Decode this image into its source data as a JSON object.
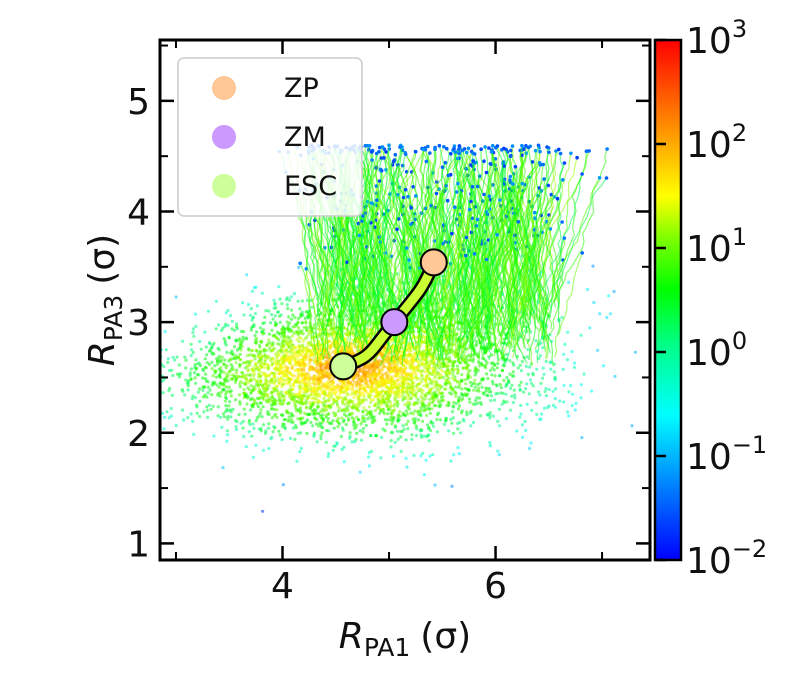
{
  "chart_data": {
    "type": "scatter",
    "xlabel": {
      "main": "R",
      "sub": "PA1",
      "unit": "(σ)"
    },
    "ylabel": {
      "main": "R",
      "sub": "PA3",
      "unit": "(σ)"
    },
    "xlim": [
      2.85,
      7.45
    ],
    "ylim": [
      0.85,
      5.55
    ],
    "xticks": [
      4,
      6
    ],
    "yticks": [
      1,
      2,
      3,
      4,
      5
    ],
    "legend": {
      "placement": "top-left",
      "entries": [
        {
          "label": "ZP",
          "color": "#FFC896"
        },
        {
          "label": "ZM",
          "color": "#CC99FF"
        },
        {
          "label": "ESC",
          "color": "#CCFF99"
        }
      ]
    },
    "colorbar": {
      "scale": "log",
      "min": 0.01,
      "max": 1000,
      "ticks": [
        {
          "base": "10",
          "exp": "3"
        },
        {
          "base": "10",
          "exp": "2"
        },
        {
          "base": "10",
          "exp": "1"
        },
        {
          "base": "10",
          "exp": "0"
        },
        {
          "base": "10",
          "exp": "−1"
        },
        {
          "base": "10",
          "exp": "−2"
        }
      ]
    },
    "markers": [
      {
        "name": "ZP",
        "x": 5.42,
        "y": 3.54,
        "color": "#FFC896"
      },
      {
        "name": "ZM",
        "x": 5.05,
        "y": 3.0,
        "color": "#CC99FF"
      },
      {
        "name": "ESC",
        "x": 4.57,
        "y": 2.6,
        "color": "#CCFF99"
      }
    ],
    "density_region": {
      "center": [
        4.6,
        2.6
      ],
      "spread": [
        0.75,
        0.3
      ],
      "peak_value": 300
    },
    "trajectory_region": {
      "x_range": [
        4.3,
        6.6
      ],
      "y_range": [
        2.6,
        4.6
      ],
      "tip_value": 0.02
    }
  }
}
